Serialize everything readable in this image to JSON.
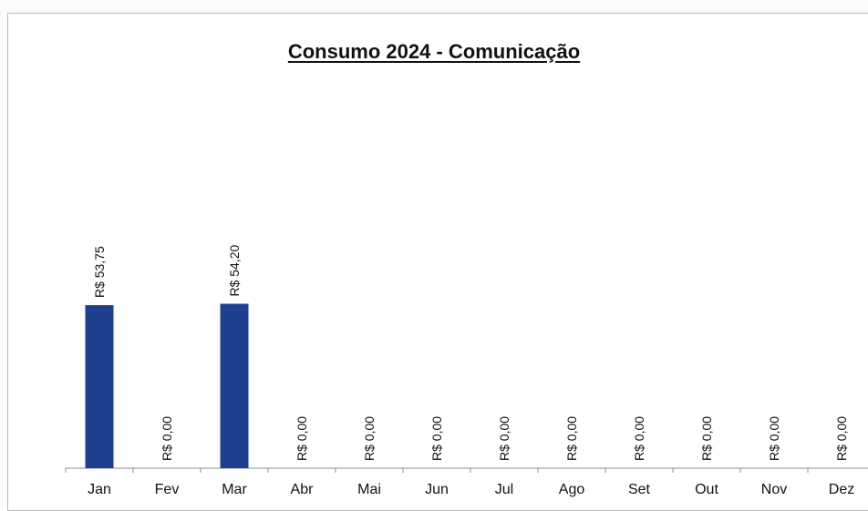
{
  "chart_data": {
    "type": "bar",
    "title": "Consumo 2024 - Comunicação",
    "categories": [
      "Jan",
      "Fev",
      "Mar",
      "Abr",
      "Mai",
      "Jun",
      "Jul",
      "Ago",
      "Set",
      "Out",
      "Nov",
      "Dez"
    ],
    "values": [
      53.75,
      0,
      54.2,
      0,
      0,
      0,
      0,
      0,
      0,
      0,
      0,
      0
    ],
    "data_labels": [
      "R$ 53,75",
      "R$ 0,00",
      "R$ 54,20",
      "R$ 0,00",
      "R$ 0,00",
      "R$ 0,00",
      "R$ 0,00",
      "R$ 0,00",
      "R$ 0,00",
      "R$ 0,00",
      "R$ 0,00",
      "R$ 0,00"
    ],
    "bar_color": "#1f3f8f",
    "xlabel": "",
    "ylabel": "",
    "ylim": [
      0,
      100
    ],
    "grid": false,
    "legend": "none"
  }
}
